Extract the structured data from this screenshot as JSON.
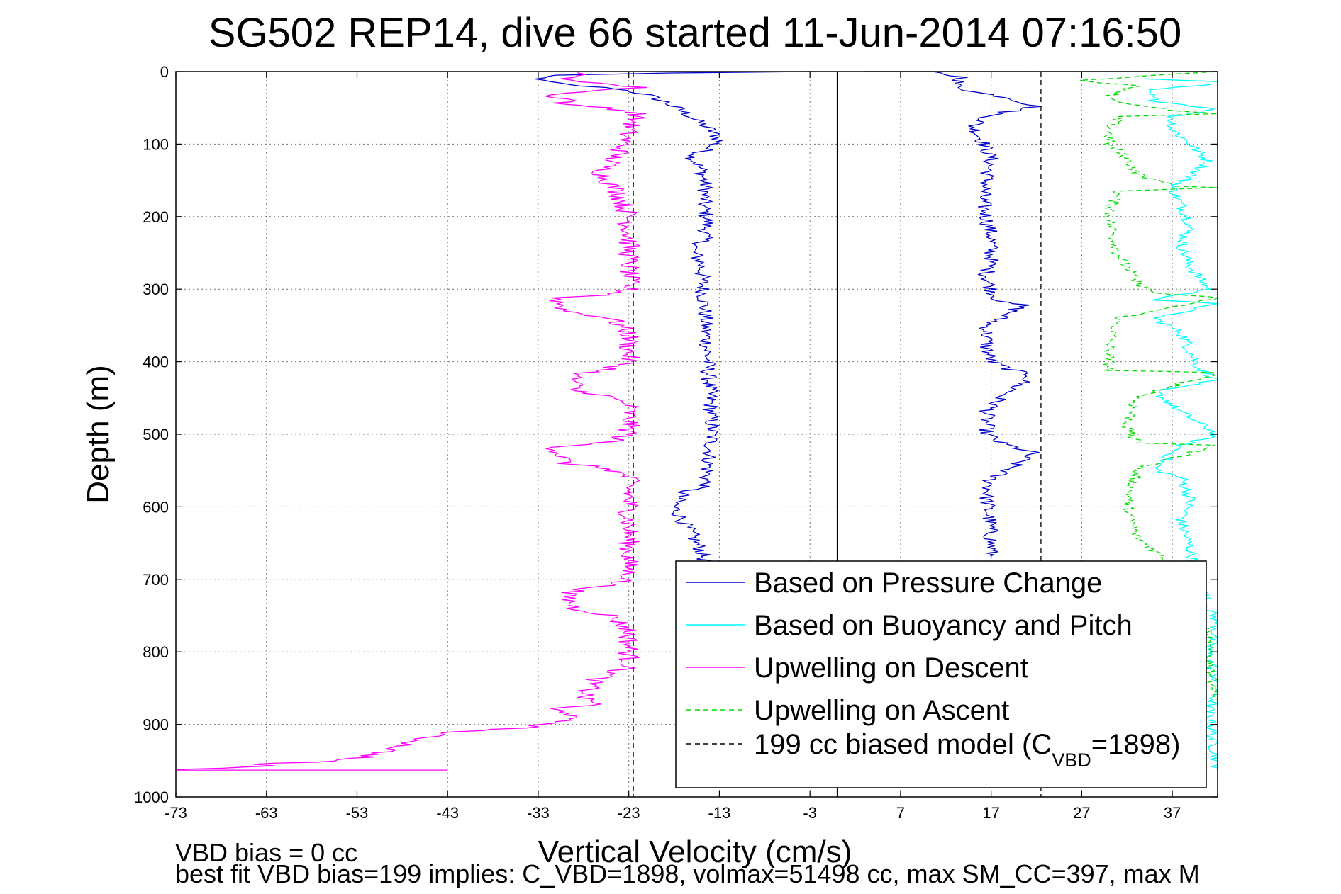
{
  "chart_data": {
    "type": "line",
    "title": "SG502 REP14, dive 66 started 11-Jun-2014 07:16:50",
    "xlabel": "Vertical Velocity (cm/s)",
    "ylabel": "Depth (m)",
    "xlim": [
      -73,
      42
    ],
    "ylim": [
      0,
      1000
    ],
    "y_reversed": true,
    "grid": true,
    "x_ticks": [
      "-73",
      "-63",
      "-53",
      "-43",
      "-33",
      "-23",
      "-13",
      "-3",
      "7",
      "17",
      "27",
      "37"
    ],
    "y_ticks": [
      "0",
      "100",
      "200",
      "300",
      "400",
      "500",
      "600",
      "700",
      "800",
      "900",
      "1000"
    ],
    "legend_position": "bottom-right",
    "legend": [
      {
        "label": "Based on Pressure Change",
        "color": "#0000cc",
        "dash": "solid"
      },
      {
        "label": "Based on Buoyancy and Pitch",
        "color": "#00ffff",
        "dash": "solid"
      },
      {
        "label": "Upwelling on Descent",
        "color": "#ff00ff",
        "dash": "solid"
      },
      {
        "label": "Upwelling on Ascent",
        "color": "#00dd00",
        "dash": "dashed"
      },
      {
        "label_main": "199 cc biased model (C",
        "label_sub": "VBD",
        "label_tail": "=1898)",
        "color": "#000000",
        "dash": "dashed"
      }
    ],
    "series": [
      {
        "key": "pressure_descent",
        "color": "#0000cc",
        "dash": "solid",
        "points": [
          [
            -3,
            0
          ],
          [
            -18,
            2
          ],
          [
            -32,
            5
          ],
          [
            -33,
            12
          ],
          [
            -30,
            18
          ],
          [
            -24,
            24
          ],
          [
            -21,
            32
          ],
          [
            -19,
            42
          ],
          [
            -17,
            55
          ],
          [
            -15.5,
            68
          ],
          [
            -14,
            80
          ],
          [
            -13,
            95
          ],
          [
            -14.5,
            108
          ],
          [
            -16,
            118
          ],
          [
            -15,
            135
          ],
          [
            -14.5,
            160
          ],
          [
            -14.8,
            185
          ],
          [
            -14.3,
            205
          ],
          [
            -14.8,
            235
          ],
          [
            -16,
            245
          ],
          [
            -15,
            265
          ],
          [
            -14.8,
            300
          ],
          [
            -14.5,
            350
          ],
          [
            -14.3,
            400
          ],
          [
            -14,
            450
          ],
          [
            -13.8,
            500
          ],
          [
            -14.2,
            540
          ],
          [
            -14.5,
            570
          ],
          [
            -17,
            580
          ],
          [
            -18,
            600
          ],
          [
            -17,
            620
          ],
          [
            -16,
            640
          ],
          [
            -15,
            660
          ],
          [
            -14.5,
            680
          ]
        ],
        "noise": 0.9
      },
      {
        "key": "pressure_ascent",
        "color": "#0000cc",
        "dash": "solid",
        "points": [
          [
            2,
            0
          ],
          [
            10,
            0
          ],
          [
            14,
            8
          ],
          [
            13,
            18
          ],
          [
            15,
            28
          ],
          [
            19,
            36
          ],
          [
            22,
            48
          ],
          [
            17,
            60
          ],
          [
            15,
            75
          ],
          [
            16,
            95
          ],
          [
            17,
            120
          ],
          [
            16.5,
            150
          ],
          [
            16,
            175
          ],
          [
            16.5,
            200
          ],
          [
            17,
            230
          ],
          [
            17,
            260
          ],
          [
            16.5,
            280
          ],
          [
            17,
            300
          ],
          [
            18,
            318
          ],
          [
            20.5,
            322
          ],
          [
            18,
            340
          ],
          [
            16.5,
            350
          ],
          [
            16.5,
            380
          ],
          [
            17,
            400
          ],
          [
            19,
            410
          ],
          [
            21.5,
            420
          ],
          [
            18,
            450
          ],
          [
            16.5,
            470
          ],
          [
            16.5,
            500
          ],
          [
            18,
            512
          ],
          [
            21.5,
            525
          ],
          [
            19,
            548
          ],
          [
            17,
            560
          ],
          [
            16.5,
            590
          ],
          [
            16.8,
            620
          ],
          [
            17,
            650
          ],
          [
            17,
            670
          ]
        ],
        "noise": 0.9
      },
      {
        "key": "buoyancy_descent",
        "color": "#00ffff",
        "dash": "solid",
        "points": [
          [
            34,
            10
          ],
          [
            38,
            12
          ],
          [
            40,
            13
          ],
          [
            42,
            14
          ]
        ],
        "noise": 0.2
      },
      {
        "key": "buoyancy_ascent",
        "color": "#00ffff",
        "dash": "solid",
        "points": [
          [
            41,
            18
          ],
          [
            34,
            25
          ],
          [
            35,
            40
          ],
          [
            42,
            52
          ],
          [
            37,
            62
          ],
          [
            37,
            80
          ],
          [
            39,
            100
          ],
          [
            41,
            125
          ],
          [
            39,
            145
          ],
          [
            37,
            160
          ],
          [
            38,
            185
          ],
          [
            39,
            210
          ],
          [
            38,
            240
          ],
          [
            39,
            270
          ],
          [
            41,
            300
          ],
          [
            35,
            315
          ],
          [
            42,
            320
          ],
          [
            35,
            340
          ],
          [
            38,
            360
          ],
          [
            40,
            410
          ],
          [
            42,
            425
          ],
          [
            35,
            440
          ],
          [
            38,
            470
          ],
          [
            42,
            500
          ],
          [
            38,
            515
          ],
          [
            35,
            548
          ],
          [
            38,
            560
          ],
          [
            39,
            590
          ],
          [
            38,
            620
          ],
          [
            39,
            660
          ],
          [
            40,
            700
          ],
          [
            41,
            740
          ],
          [
            42,
            760
          ],
          [
            41,
            800
          ],
          [
            42,
            850
          ],
          [
            41,
            880
          ],
          [
            42,
            960
          ]
        ],
        "noise": 0.7
      },
      {
        "key": "upwelling_descent",
        "color": "#ff00ff",
        "dash": "solid",
        "points": [
          [
            -28,
            0
          ],
          [
            -30,
            10
          ],
          [
            -25,
            18
          ],
          [
            -22,
            22
          ],
          [
            -28,
            28
          ],
          [
            -32,
            32
          ],
          [
            -29,
            40
          ],
          [
            -31,
            45
          ],
          [
            -25,
            50
          ],
          [
            -22,
            58
          ],
          [
            -23,
            80
          ],
          [
            -24,
            110
          ],
          [
            -26,
            140
          ],
          [
            -24,
            170
          ],
          [
            -23,
            200
          ],
          [
            -23,
            250
          ],
          [
            -23,
            300
          ],
          [
            -25,
            308
          ],
          [
            -31,
            312
          ],
          [
            -30,
            330
          ],
          [
            -25,
            340
          ],
          [
            -23,
            360
          ],
          [
            -23,
            400
          ],
          [
            -25,
            410
          ],
          [
            -29,
            418
          ],
          [
            -29,
            440
          ],
          [
            -26,
            445
          ],
          [
            -23,
            460
          ],
          [
            -23,
            500
          ],
          [
            -25,
            510
          ],
          [
            -31,
            518
          ],
          [
            -30,
            540
          ],
          [
            -25,
            548
          ],
          [
            -23,
            560
          ],
          [
            -23,
            620
          ],
          [
            -23,
            700
          ],
          [
            -26,
            710
          ],
          [
            -30,
            718
          ],
          [
            -29,
            740
          ],
          [
            -25,
            750
          ],
          [
            -23,
            770
          ],
          [
            -23,
            820
          ],
          [
            -25,
            830
          ],
          [
            -27,
            840
          ],
          [
            -28,
            865
          ],
          [
            -26,
            872
          ],
          [
            -32,
            878
          ],
          [
            -29,
            885
          ],
          [
            -31,
            898
          ],
          [
            -35,
            905
          ],
          [
            -44,
            912
          ],
          [
            -48,
            930
          ],
          [
            -52,
            945
          ],
          [
            -58,
            952
          ],
          [
            -65,
            955
          ],
          [
            -62,
            957
          ],
          [
            -72,
            962
          ],
          [
            -73,
            963
          ],
          [
            -43,
            963
          ]
        ],
        "noise": 1.2
      },
      {
        "key": "upwelling_ascent",
        "color": "#00dd00",
        "dash": "dashed",
        "points": [
          [
            5,
            0
          ],
          [
            42,
            0
          ],
          [
            27,
            12
          ],
          [
            33,
            20
          ],
          [
            30,
            35
          ],
          [
            32,
            45
          ],
          [
            38,
            55
          ],
          [
            42,
            58
          ],
          [
            31,
            62
          ],
          [
            30,
            80
          ],
          [
            30,
            100
          ],
          [
            32,
            120
          ],
          [
            33,
            140
          ],
          [
            35,
            150
          ],
          [
            38,
            158
          ],
          [
            42,
            160
          ],
          [
            31,
            165
          ],
          [
            30,
            200
          ],
          [
            31,
            250
          ],
          [
            33,
            290
          ],
          [
            35,
            305
          ],
          [
            42,
            312
          ],
          [
            31,
            340
          ],
          [
            30,
            380
          ],
          [
            30,
            412
          ],
          [
            42,
            415
          ],
          [
            33,
            450
          ],
          [
            32,
            490
          ],
          [
            33,
            512
          ],
          [
            42,
            515
          ],
          [
            33,
            548
          ],
          [
            32,
            600
          ],
          [
            33,
            640
          ],
          [
            35,
            660
          ],
          [
            37,
            680
          ],
          [
            38,
            700
          ],
          [
            40,
            740
          ],
          [
            41,
            800
          ],
          [
            42,
            870
          ]
        ],
        "noise": 0.7
      },
      {
        "key": "model_descent",
        "color": "#000000",
        "dash": "dashed",
        "points": [
          [
            -22.5,
            0
          ],
          [
            -22.5,
            1000
          ]
        ],
        "noise": 0
      },
      {
        "key": "model_ascent",
        "color": "#000000",
        "dash": "dashed",
        "points": [
          [
            22.5,
            0
          ],
          [
            22.5,
            1000
          ]
        ],
        "noise": 0
      }
    ],
    "zero_line": {
      "x": 0,
      "color": "#000000"
    }
  },
  "footer": {
    "line1": "VBD bias = 0 cc",
    "line2": "best fit VBD bias=199 implies: C_VBD=1898, volmax=51498 cc, max SM_CC=397, max M"
  }
}
